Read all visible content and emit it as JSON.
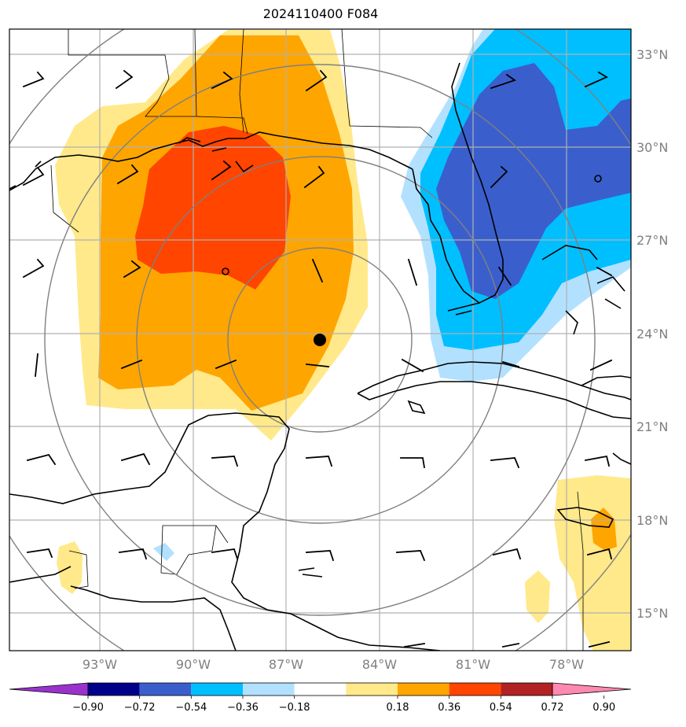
{
  "title": "2024110400 F084",
  "colors": {
    "yellow": "#ffe98a",
    "orange": "#ffa500",
    "red_orange": "#ff4500",
    "light_blue": "#b2e1ff",
    "cyan_blue": "#00bfff",
    "royal_blue": "#3a5fcd",
    "ring": "#808080",
    "grid": "#b0b0b0"
  },
  "lon_labels": [
    "93°W",
    "90°W",
    "87°W",
    "84°W",
    "81°W",
    "78°W"
  ],
  "lat_labels": [
    "33°N",
    "30°N",
    "27°N",
    "24°N",
    "21°N",
    "18°N",
    "15°N"
  ],
  "colorbar": {
    "colors": [
      "#9932cc",
      "#00008b",
      "#3a5fcd",
      "#00bfff",
      "#b2e1ff",
      "#ffffff",
      "#ffe98a",
      "#ffa500",
      "#ff4500",
      "#b22222",
      "#ff88b0"
    ],
    "tick_labels": [
      "−0.90",
      "−0.72",
      "−0.54",
      "−0.36",
      "−0.18",
      "0.18",
      "0.36",
      "0.54",
      "0.72",
      "0.90"
    ]
  }
}
